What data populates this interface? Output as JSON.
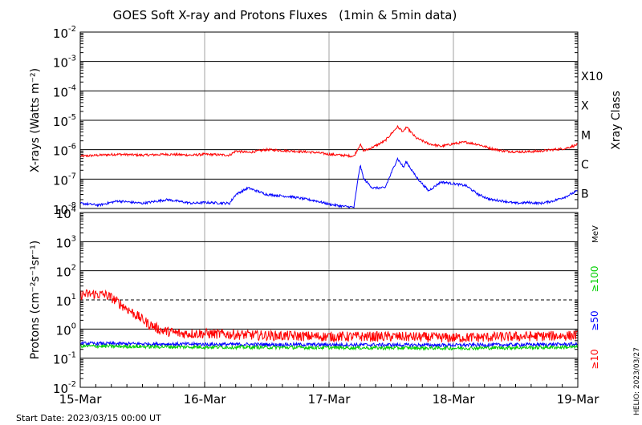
{
  "title": "GOES Soft X-ray and Protons Fluxes   (1min & 5min data)",
  "start_date_text": "Start Date: 2023/03/15 00:00 UT",
  "credit_text": "HELIO: 2023/03/27",
  "colors": {
    "red": "#ff0000",
    "blue": "#0000ff",
    "green": "#00d000",
    "grid": "#000000",
    "vgrid": "#a0a0a0"
  },
  "chart_data": [
    {
      "type": "line",
      "panel": "xray",
      "ylabel": "X-rays (Watts m⁻²)",
      "yscale": "log",
      "ylim": [
        1e-08,
        0.01
      ],
      "y_tick_labels": [
        {
          "base": "10",
          "exp": "-8"
        },
        {
          "base": "10",
          "exp": "-7"
        },
        {
          "base": "10",
          "exp": "-6"
        },
        {
          "base": "10",
          "exp": "-5"
        },
        {
          "base": "10",
          "exp": "-4"
        },
        {
          "base": "10",
          "exp": "-3"
        },
        {
          "base": "10",
          "exp": "-2"
        }
      ],
      "right_axis_label": "Xray Class",
      "class_labels": [
        "B",
        "C",
        "M",
        "X",
        "X10"
      ],
      "x_range_days": [
        0,
        4
      ],
      "x_tick_labels": [
        "15-Mar",
        "16-Mar",
        "17-Mar",
        "18-Mar",
        "19-Mar"
      ],
      "series": [
        {
          "color": "red",
          "x": [
            0,
            0.15,
            0.3,
            0.5,
            0.7,
            0.9,
            1.0,
            1.2,
            1.25,
            1.35,
            1.5,
            1.7,
            1.9,
            2.0,
            2.1,
            2.2,
            2.25,
            2.28,
            2.35,
            2.45,
            2.55,
            2.6,
            2.62,
            2.7,
            2.8,
            2.9,
            3.0,
            3.1,
            3.2,
            3.3,
            3.4,
            3.5,
            3.6,
            3.7,
            3.8,
            3.9,
            4.0
          ],
          "y": [
            6e-07,
            6.5e-07,
            7e-07,
            6.5e-07,
            7e-07,
            6.5e-07,
            7e-07,
            6.5e-07,
            9e-07,
            8e-07,
            1e-06,
            9e-07,
            8e-07,
            7e-07,
            6.5e-07,
            6e-07,
            1.5e-06,
            9e-07,
            1.2e-06,
            2e-06,
            6e-06,
            4e-06,
            6e-06,
            2.5e-06,
            1.6e-06,
            1.3e-06,
            1.6e-06,
            1.8e-06,
            1.5e-06,
            1.1e-06,
            9e-07,
            8.5e-07,
            8.5e-07,
            9e-07,
            1e-06,
            1.1e-06,
            1.5e-06
          ]
        },
        {
          "color": "blue",
          "x": [
            0,
            0.15,
            0.3,
            0.5,
            0.7,
            0.9,
            1.0,
            1.2,
            1.25,
            1.35,
            1.5,
            1.7,
            1.9,
            2.0,
            2.1,
            2.2,
            2.25,
            2.28,
            2.35,
            2.45,
            2.55,
            2.6,
            2.62,
            2.7,
            2.8,
            2.9,
            3.0,
            3.1,
            3.2,
            3.3,
            3.4,
            3.5,
            3.6,
            3.7,
            3.8,
            3.9,
            4.0
          ],
          "y": [
            1.5e-08,
            1.3e-08,
            1.8e-08,
            1.5e-08,
            2e-08,
            1.5e-08,
            1.6e-08,
            1.5e-08,
            3e-08,
            5e-08,
            3e-08,
            2.5e-08,
            1.8e-08,
            1.4e-08,
            1.2e-08,
            1.1e-08,
            3e-07,
            1e-07,
            5e-08,
            5e-08,
            5e-07,
            2.5e-07,
            4e-07,
            1.2e-07,
            4e-08,
            8e-08,
            7e-08,
            6e-08,
            3e-08,
            2e-08,
            1.8e-08,
            1.5e-08,
            1.6e-08,
            1.5e-08,
            1.8e-08,
            2.5e-08,
            4e-08
          ]
        }
      ]
    },
    {
      "type": "line",
      "panel": "protons",
      "ylabel": "Protons (cm⁻²s⁻¹sr⁻¹)",
      "yscale": "log",
      "ylim": [
        0.01,
        10000
      ],
      "y_tick_labels": [
        {
          "base": "10",
          "exp": "-2"
        },
        {
          "base": "10",
          "exp": "-1"
        },
        {
          "base": "10",
          "exp": "0"
        },
        {
          "base": "10",
          "exp": "1"
        },
        {
          "base": "10",
          "exp": "2"
        },
        {
          "base": "10",
          "exp": "3"
        },
        {
          "base": "10",
          "exp": "4"
        }
      ],
      "x_range_days": [
        0,
        4
      ],
      "x_tick_labels": [
        "15-Mar",
        "16-Mar",
        "17-Mar",
        "18-Mar",
        "19-Mar"
      ],
      "threshold": 10,
      "unit_label": "MeV",
      "series": [
        {
          "name": "≥10",
          "color": "red",
          "x": [
            0,
            0.1,
            0.2,
            0.25,
            0.35,
            0.45,
            0.55,
            0.65,
            0.8,
            1.0,
            1.5,
            2.0,
            2.5,
            3.0,
            3.5,
            4.0
          ],
          "y": [
            15,
            16,
            15,
            12,
            6,
            3,
            1.5,
            0.9,
            0.7,
            0.7,
            0.6,
            0.55,
            0.55,
            0.5,
            0.55,
            0.6
          ]
        },
        {
          "name": "≥50",
          "color": "blue",
          "x": [
            0,
            1,
            2,
            3,
            4
          ],
          "y": [
            0.32,
            0.3,
            0.29,
            0.28,
            0.3
          ]
        },
        {
          "name": "≥100",
          "color": "green",
          "x": [
            0,
            1,
            2,
            3,
            4
          ],
          "y": [
            0.26,
            0.24,
            0.23,
            0.22,
            0.24
          ]
        }
      ]
    }
  ]
}
